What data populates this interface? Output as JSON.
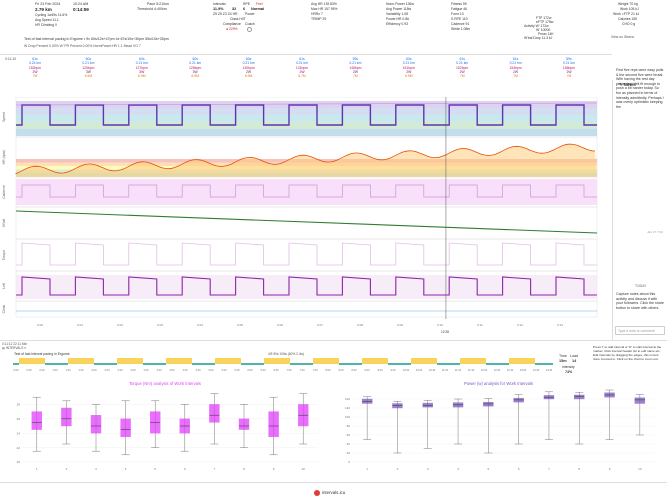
{
  "header": {
    "date": "Fri 23 Feb 2024",
    "time": "10:24 AM",
    "distance": "2.79 km",
    "duration": "0:14:59",
    "type": "Cycling",
    "type2": "1w49s",
    "type3": "11.6%",
    "avg_speed": "Avg Speed 11.1",
    "elevation": "HR Climbing 0",
    "pace": "Pace 5:21/km",
    "threshold": "Threshold 4:40/km",
    "intervals_label": "Intervals",
    "load": "Load",
    "rpe": "RPE",
    "feel": "Feel",
    "intervals_val": "11.9%",
    "load_val": "32",
    "rpe_val": "6",
    "feel_val": "Normal",
    "zones": "Z5 Z5 Z3 Z4 HR",
    "power_label": "Power",
    "class_label": "Class HIIT",
    "compliance": "Compliance",
    "coach": "Coach",
    "compliance_val": "229%",
    "avg_hr": "Avg HR 139 83%",
    "max_hr": "Max HR 157 95%",
    "hrrc": "HRRc 7",
    "trimp": "TRIMP 29",
    "norm_power": "Norm Power 136w",
    "avg_power": "Avg Power 118w",
    "variability": "Variability 1.08",
    "power_hr": "Power:HR 0.86",
    "efficiency": "Efficiency 0.93",
    "fitness": "Fitness 59",
    "fatigue": "Fatigue 46",
    "form": "Form 13",
    "ramp": "S.RPE 119",
    "cadence": "Cadence 91",
    "stride": "Stride 1.08m",
    "ftp": "FTP 172w",
    "eftp": "eFTP 178w",
    "activity_ftp": "Activity W' 172w",
    "w": "W' 10000",
    "pmax": "Pmax 14K",
    "wbal": "W'bal Drop 11.3 kJ",
    "weight": "Weight 70 kg",
    "work": "Work 105 kJ",
    "work_ftp": "Work >FTP 21 kJ",
    "calories": "Calories 155",
    "carbs": "CHO 0 g",
    "view_strava": "View on Strava",
    "test_text": "Test of fast interval pacing in Ergome • 9x 60s/12s+47pm 4x 87s/10s+30pm 55s/10s+35pm",
    "row2": "W Drop Percent 0.00%   W' PR Percent 0.00%   NormPower:HR 1.1   Mead VO 7"
  },
  "intervals": [
    {
      "n": "61s",
      "d": "0.24 km",
      "p": "152bpm",
      "w": "2W",
      "hr": "7M"
    },
    {
      "n": "60s",
      "d": "0.21 km",
      "p": "125bpm",
      "w": "3W",
      "hr": "6.9M"
    },
    {
      "n": "60s",
      "d": "0.21 km",
      "p": "127bpm",
      "w": "3W",
      "hr": "6.9M"
    },
    {
      "n": "60s",
      "d": "0.21 km",
      "p": "128bpm",
      "w": "3W",
      "hr": "6.9M"
    },
    {
      "n": "60s",
      "d": "0.21 km",
      "p": "130bpm",
      "w": "2W",
      "hr": "6.9M"
    },
    {
      "n": "61s",
      "d": "0.21 km",
      "p": "131bpm",
      "w": "2W",
      "hr": "6.7M"
    },
    {
      "n": "59s",
      "d": "0.21 km",
      "p": "148bpm",
      "w": "2W",
      "hr": "7M"
    },
    {
      "n": "60s",
      "d": "0.21 km",
      "p": "151bpm",
      "w": "2W",
      "hr": "6.9M"
    },
    {
      "n": "61s",
      "d": "0.21 km",
      "p": "152bpm",
      "w": "2W",
      "hr": "7M"
    },
    {
      "n": "61s",
      "d": "0.21 km",
      "p": "154bpm",
      "w": "2W",
      "hr": "7M"
    },
    {
      "n": "59s",
      "d": "0.21 km",
      "p": "156bpm",
      "w": "2W",
      "hr": "7M"
    }
  ],
  "panels": [
    "Speed",
    "HR (bpm)",
    "Cadence",
    "W'bal",
    "Torque",
    "Left",
    "Climb"
  ],
  "time_ticks": [
    "0:00",
    "0:01",
    "0:02",
    "0:03",
    "0:04",
    "0:05",
    "0:06",
    "0:07",
    "0:08",
    "0:09",
    "0:10",
    "0:11",
    "0:12",
    "0:13",
    "0:14"
  ],
  "cursor_time": "12:28",
  "notes": {
    "title": "Notes",
    "body": "First five reps were easy pulls & the second five were brutal. With having the rest day yesterday I felt fit enough to push a bit harder today. So fun as planned in terms of intensity admittedly. Perhaps I was overly optimistic keeping the",
    "date": "Jan 27 7:34",
    "today": "TODAY",
    "capture": "Capture notes about this activity and discuss it with your followers. Click the share button to share with others.",
    "placeholder": "Type a note or comment"
  },
  "lower": {
    "status_left": "0:11:12  22:11 Min",
    "tab": "INTERVALS",
    "strip_title": "Test of fast interval pacing in Ergome",
    "strip_center": "4/5 90s 100w (60% 2.4w)",
    "time": "Time",
    "load": "Load",
    "time_val": "15m",
    "load_val": "14",
    "intensity": "Intensity",
    "intensity_val": "74%",
    "help": "Press 'I' to add interval or 'D' to split interval at the marker. Click interval header list to edit name etc. Edit intervals by dragging the edges, this is best done zoomed in. Click on the chart to zoom out.",
    "strip_ticks": [
      "0:00",
      "0:20",
      "0:40",
      "1:00",
      "1:20",
      "1:40",
      "2:00",
      "2:20",
      "2:40",
      "3:00",
      "3:20",
      "3:40",
      "4:00",
      "4:20",
      "4:40",
      "5:00",
      "5:20",
      "5:40",
      "6:00",
      "6:20",
      "6:40",
      "7:00",
      "7:20",
      "7:40",
      "8:00",
      "8:20",
      "8:40",
      "9:00",
      "9:20",
      "9:40",
      "10:00",
      "10:20",
      "10:40",
      "11:00",
      "11:20",
      "11:40",
      "12:00",
      "12:20",
      "12:40",
      "13:00",
      "13:20",
      "13:40"
    ]
  },
  "chart_data": [
    {
      "type": "box",
      "title": "Torque (Nm) analysis of Work Intervals",
      "categories": [
        "1",
        "2",
        "3",
        "4",
        "5",
        "6",
        "7",
        "8",
        "9",
        "10"
      ],
      "ylim": [
        20,
        30
      ],
      "ticks": [
        20,
        22,
        24,
        26,
        28
      ],
      "boxes": [
        {
          "min": 21.5,
          "q1": 24.5,
          "med": 25.5,
          "q3": 27.0,
          "max": 29.0
        },
        {
          "min": 22.5,
          "q1": 25.0,
          "med": 26.0,
          "q3": 27.5,
          "max": 28.5
        },
        {
          "min": 21.5,
          "q1": 24.0,
          "med": 25.0,
          "q3": 26.5,
          "max": 28.0
        },
        {
          "min": 21.0,
          "q1": 23.5,
          "med": 24.5,
          "q3": 26.0,
          "max": 28.5
        },
        {
          "min": 22.0,
          "q1": 24.0,
          "med": 25.5,
          "q3": 27.0,
          "max": 28.5
        },
        {
          "min": 21.5,
          "q1": 24.0,
          "med": 25.0,
          "q3": 26.0,
          "max": 28.0
        },
        {
          "min": 22.5,
          "q1": 25.5,
          "med": 26.5,
          "q3": 28.0,
          "max": 29.5
        },
        {
          "min": 22.0,
          "q1": 24.5,
          "med": 25.0,
          "q3": 26.0,
          "max": 28.0
        },
        {
          "min": 21.0,
          "q1": 23.5,
          "med": 25.0,
          "q3": 27.0,
          "max": 29.0
        },
        {
          "min": 22.5,
          "q1": 25.0,
          "med": 26.5,
          "q3": 28.0,
          "max": 29.5
        }
      ],
      "color": "#e040fb"
    },
    {
      "type": "box",
      "title": "Power (w) analysis for Work Intervals",
      "categories": [
        "1",
        "2",
        "3",
        "4",
        "5",
        "6",
        "7",
        "8",
        "9",
        "10"
      ],
      "ylim": [
        0,
        160
      ],
      "ticks": [
        0,
        20,
        40,
        60,
        80,
        100,
        120,
        140
      ],
      "boxes": [
        {
          "min": 50,
          "q1": 130,
          "med": 135,
          "q3": 140,
          "max": 145
        },
        {
          "min": 20,
          "q1": 120,
          "med": 125,
          "q3": 130,
          "max": 135
        },
        {
          "min": 30,
          "q1": 122,
          "med": 126,
          "q3": 131,
          "max": 137
        },
        {
          "min": 40,
          "q1": 122,
          "med": 127,
          "q3": 132,
          "max": 140
        },
        {
          "min": 20,
          "q1": 124,
          "med": 129,
          "q3": 133,
          "max": 141
        },
        {
          "min": 40,
          "q1": 133,
          "med": 138,
          "q3": 142,
          "max": 150
        },
        {
          "min": 50,
          "q1": 140,
          "med": 144,
          "q3": 148,
          "max": 156
        },
        {
          "min": 40,
          "q1": 140,
          "med": 145,
          "q3": 149,
          "max": 155
        },
        {
          "min": 50,
          "q1": 144,
          "med": 149,
          "q3": 154,
          "max": 160
        },
        {
          "min": 60,
          "q1": 130,
          "med": 138,
          "q3": 143,
          "max": 150
        }
      ],
      "color": "#7e57c2"
    }
  ],
  "footer": {
    "brand": "intervals.icu"
  }
}
